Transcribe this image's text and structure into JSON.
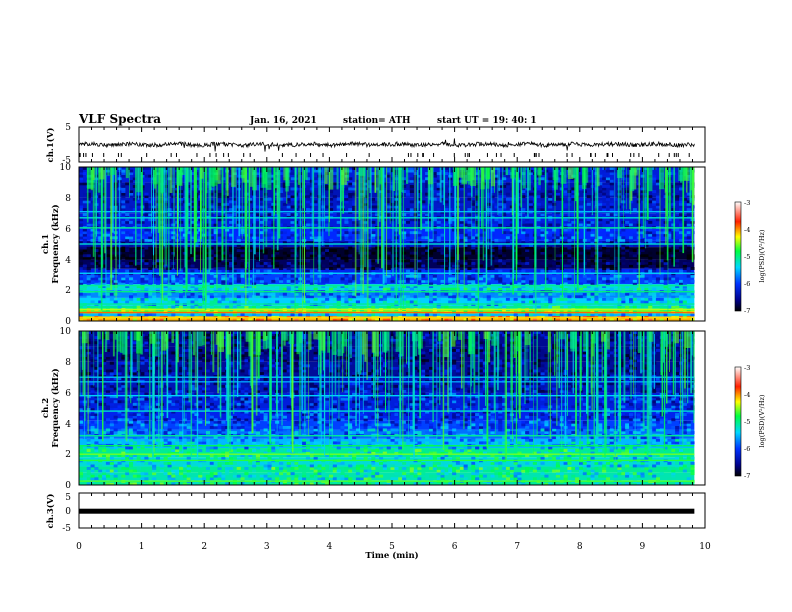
{
  "header": {
    "title": "VLF Spectra",
    "date": "Jan. 16, 2021",
    "station": "station= ATH",
    "start": "start  UT  =   19: 40: 1"
  },
  "chart_data": [
    {
      "type": "line",
      "id": "ch1-waveform",
      "ylabel": "ch.1(V)",
      "xlim": [
        0,
        10
      ],
      "ylim": [
        -5,
        5
      ],
      "yticks": [
        "5",
        "-5"
      ],
      "baseline": 0,
      "noise_amplitude": 0.6
    },
    {
      "type": "heatmap",
      "id": "ch1-spectrogram",
      "ylabel_line1": "ch.1",
      "ylabel_line2": "Frequency (kHz)",
      "xlim": [
        0,
        10
      ],
      "ylim": [
        0,
        10
      ],
      "yticks": [
        "0",
        "2",
        "4",
        "6",
        "8",
        "10"
      ],
      "colorbar": {
        "label": "log(PSD)(V²/Hz)",
        "ticks": [
          "-3",
          "-4",
          "-5",
          "-6",
          "-7"
        ],
        "range": [
          -7,
          -3
        ]
      }
    },
    {
      "type": "heatmap",
      "id": "ch2-spectrogram",
      "ylabel_line1": "ch.2",
      "ylabel_line2": "Frequency (kHz)",
      "xlim": [
        0,
        10
      ],
      "ylim": [
        0,
        10
      ],
      "yticks": [
        "0",
        "2",
        "4",
        "6",
        "8",
        "10"
      ],
      "colorbar": {
        "label": "log(PSD)(V²/Hz)",
        "ticks": [
          "-3",
          "-4",
          "-5",
          "-6",
          "-7"
        ],
        "range": [
          -7,
          -3
        ]
      }
    },
    {
      "type": "line",
      "id": "ch3-waveform",
      "ylabel": "ch.3(V)",
      "xlim": [
        0,
        10
      ],
      "ylim": [
        -5,
        5
      ],
      "yticks": [
        "5",
        "0",
        "-5"
      ],
      "baseline": -0.2
    }
  ],
  "x_axis": {
    "label": "Time (min)",
    "ticks": [
      "0",
      "1",
      "2",
      "3",
      "4",
      "5",
      "6",
      "7",
      "8",
      "9",
      "10"
    ],
    "data_end": 9.83
  }
}
